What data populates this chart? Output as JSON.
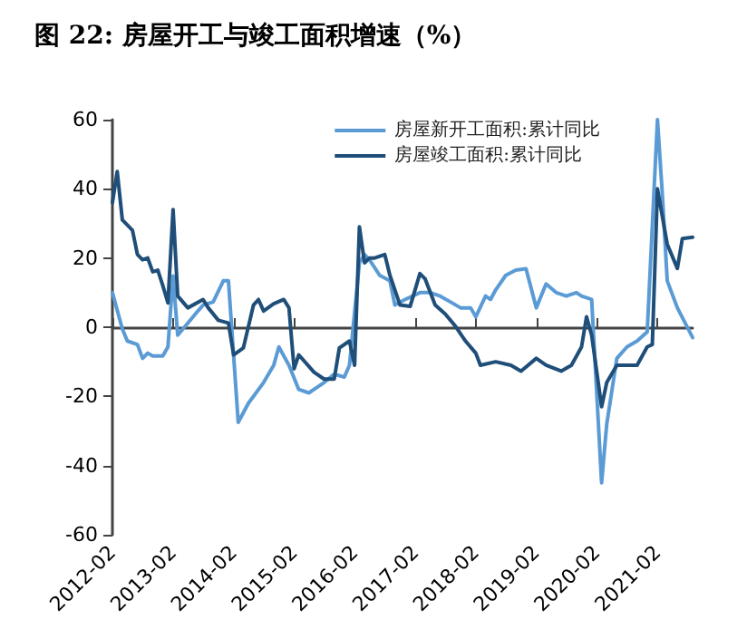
{
  "chart_data": {
    "type": "line",
    "title": "图 22: 房屋开工与竣工面积增速（%）",
    "xlim": [
      "2012-02",
      "2021-09"
    ],
    "xticks": [
      "2012-02",
      "2013-02",
      "2014-02",
      "2015-02",
      "2016-02",
      "2017-02",
      "2018-02",
      "2019-02",
      "2020-02",
      "2021-02"
    ],
    "ylim": [
      -60,
      60
    ],
    "yticks": [
      -60,
      -40,
      -20,
      0,
      20,
      40,
      60
    ],
    "legend": "top right",
    "marker": "none",
    "line_style": "solid",
    "series": [
      {
        "name": "房屋新开工面积:累计同比",
        "color": "#5b9bd5",
        "x": [
          "2012-02",
          "2012-04",
          "2012-05",
          "2012-07",
          "2012-08",
          "2012-09",
          "2012-10",
          "2012-12",
          "2013-01",
          "2013-02",
          "2013-03",
          "2013-05",
          "2013-07",
          "2013-08",
          "2013-10",
          "2013-12",
          "2014-01",
          "2014-03",
          "2014-05",
          "2014-08",
          "2014-10",
          "2014-11",
          "2015-01",
          "2015-03",
          "2015-05",
          "2015-06",
          "2015-08",
          "2015-10",
          "2015-12",
          "2016-01",
          "2016-03",
          "2016-04",
          "2016-05",
          "2016-07",
          "2016-09",
          "2016-10",
          "2016-12",
          "2017-03",
          "2017-05",
          "2017-07",
          "2017-09",
          "2017-11",
          "2018-01",
          "2018-02",
          "2018-04",
          "2018-05",
          "2018-06",
          "2018-08",
          "2018-10",
          "2018-12",
          "2019-02",
          "2019-04",
          "2019-06",
          "2019-08",
          "2019-10",
          "2019-11",
          "2020-01",
          "2020-03",
          "2020-04",
          "2020-06",
          "2020-08",
          "2020-10",
          "2020-12",
          "2021-02",
          "2021-03",
          "2021-04",
          "2021-06",
          "2021-09"
        ],
        "values": [
          10,
          -0.5,
          -4,
          -5,
          -9,
          -7.5,
          -8.3,
          -8.3,
          -5.7,
          14.8,
          -2.3,
          1.2,
          4.7,
          6.4,
          7.3,
          13.4,
          13.4,
          -27.5,
          -22,
          -16,
          -11,
          -5.7,
          -11,
          -18,
          -19,
          -18,
          -16,
          -13.6,
          -14.4,
          -11,
          18.6,
          21,
          19.5,
          15,
          13.4,
          6.4,
          8,
          10,
          10,
          9,
          7.3,
          5.6,
          5.6,
          3,
          9,
          8,
          10.8,
          15,
          16.5,
          16.9,
          5.6,
          12.5,
          10,
          9,
          10,
          9,
          8,
          -45,
          -28,
          -9,
          -5.7,
          -4,
          -1.4,
          60,
          39.5,
          13.4,
          5.6,
          -3
        ]
      },
      {
        "name": "房屋竣工面积:累计同比",
        "color": "#1f4e79",
        "x": [
          "2012-02",
          "2012-03",
          "2012-04",
          "2012-06",
          "2012-07",
          "2012-08",
          "2012-09",
          "2012-10",
          "2012-11",
          "2012-12",
          "2013-01",
          "2013-02",
          "2013-03",
          "2013-05",
          "2013-08",
          "2013-09",
          "2013-11",
          "2014-01",
          "2014-02",
          "2014-04",
          "2014-06",
          "2014-07",
          "2014-08",
          "2014-10",
          "2014-12",
          "2015-01",
          "2015-02",
          "2015-03",
          "2015-06",
          "2015-08",
          "2015-10",
          "2015-11",
          "2016-01",
          "2016-02",
          "2016-03",
          "2016-04",
          "2016-05",
          "2016-06",
          "2016-08",
          "2016-09",
          "2016-11",
          "2017-01",
          "2017-03",
          "2017-04",
          "2017-06",
          "2017-08",
          "2017-10",
          "2017-12",
          "2018-02",
          "2018-03",
          "2018-06",
          "2018-09",
          "2018-11",
          "2019-02",
          "2019-04",
          "2019-07",
          "2019-09",
          "2019-11",
          "2019-12",
          "2020-01",
          "2020-03",
          "2020-04",
          "2020-06",
          "2020-08",
          "2020-10",
          "2020-12",
          "2021-01",
          "2021-02",
          "2021-04",
          "2021-06",
          "2021-07",
          "2021-09"
        ],
        "values": [
          36,
          45,
          31,
          28,
          21,
          19.5,
          20,
          16,
          16.5,
          12,
          7,
          34,
          9,
          5.6,
          8,
          5.6,
          2,
          1.2,
          -8,
          -6,
          6.4,
          8,
          4.7,
          6.8,
          8,
          5.6,
          -12,
          -8,
          -13,
          -15,
          -15,
          -6,
          -4,
          -11,
          29,
          18.6,
          20,
          20,
          21,
          15,
          6.4,
          6,
          15.5,
          14,
          6.4,
          3.8,
          0.3,
          -4,
          -7.5,
          -11,
          -10,
          -11,
          -12.7,
          -9,
          -11,
          -12.7,
          -11,
          -5.7,
          3,
          -2.3,
          -23,
          -16,
          -11,
          -11,
          -11,
          -5.7,
          -5,
          40,
          24,
          17,
          25.6,
          26
        ]
      }
    ]
  }
}
